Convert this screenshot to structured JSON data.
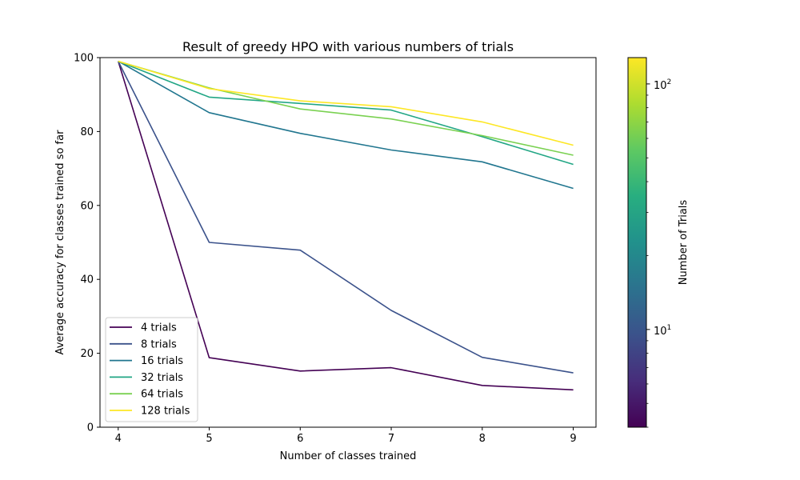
{
  "chart_data": {
    "type": "line",
    "title": "Result of greedy HPO with various numbers of trials",
    "xlabel": "Number of classes trained",
    "ylabel": "Average accuracy for classes trained so far",
    "x": [
      4,
      5,
      6,
      7,
      8,
      9
    ],
    "xlim": [
      3.8,
      9.25
    ],
    "ylim": [
      0,
      100
    ],
    "xticks": [
      "4",
      "5",
      "6",
      "7",
      "8",
      "9"
    ],
    "yticks": [
      "0",
      "20",
      "40",
      "60",
      "80",
      "100"
    ],
    "grid": false,
    "legend_position": "lower-left",
    "series": [
      {
        "name": "4 trials",
        "color": "#440154",
        "values": [
          99.0,
          18.8,
          15.2,
          16.1,
          11.3,
          10.1
        ]
      },
      {
        "name": "8 trials",
        "color": "#3b528b",
        "values": [
          99.0,
          50.0,
          47.9,
          31.6,
          18.9,
          14.7
        ]
      },
      {
        "name": "16 trials",
        "color": "#21768f",
        "values": [
          99.0,
          85.1,
          79.5,
          75.0,
          71.8,
          64.6
        ]
      },
      {
        "name": "32 trials",
        "color": "#22a685",
        "values": [
          99.0,
          89.3,
          87.6,
          85.8,
          78.6,
          71.1
        ]
      },
      {
        "name": "64 trials",
        "color": "#7ad151",
        "values": [
          99.0,
          91.8,
          86.1,
          83.4,
          78.9,
          73.6
        ]
      },
      {
        "name": "128 trials",
        "color": "#fde725",
        "values": [
          99.0,
          91.6,
          88.3,
          86.7,
          82.6,
          76.3
        ]
      }
    ],
    "colorbar": {
      "label": "Number of Trials",
      "scale": "log",
      "range": [
        4,
        128
      ],
      "colormap": "viridis",
      "ticks": [
        {
          "base": "10",
          "exp": "1",
          "value": 10
        },
        {
          "base": "10",
          "exp": "2",
          "value": 100
        }
      ]
    }
  }
}
